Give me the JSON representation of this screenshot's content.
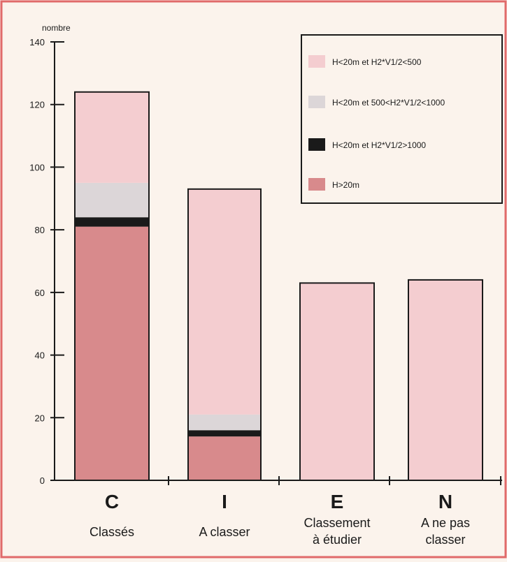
{
  "chart_data": {
    "type": "bar",
    "stacked": true,
    "ylabel": "nombre",
    "ylim": [
      0,
      140
    ],
    "yticks": [
      0,
      20,
      40,
      60,
      80,
      100,
      120,
      140
    ],
    "grid": false,
    "legend_position": "top-right",
    "categories": [
      {
        "code": "C",
        "label": [
          "Classés"
        ]
      },
      {
        "code": "I",
        "label": [
          "A classer"
        ]
      },
      {
        "code": "E",
        "label": [
          "Classement",
          "à étudier"
        ]
      },
      {
        "code": "N",
        "label": [
          "A ne pas",
          "classer"
        ]
      }
    ],
    "series": [
      {
        "name": "H>20m",
        "color": "#d88a8c",
        "values": [
          81,
          14,
          0,
          0
        ]
      },
      {
        "name": "H<20m et H2*V1/2>1000",
        "color": "#1a1a1a",
        "values": [
          3,
          2,
          0,
          0
        ]
      },
      {
        "name": "H<20m et 500<H2*V1/2<1000",
        "color": "#dcd6d8",
        "values": [
          11,
          5,
          0,
          0
        ]
      },
      {
        "name": "H<20m et H2*V1/2<500",
        "color": "#f4cdd0",
        "values": [
          29,
          72,
          63,
          64
        ]
      }
    ],
    "legend_order": [
      "H<20m et H2*V1/2<500",
      "H<20m et 500<H2*V1/2<1000",
      "H<20m et H2*V1/2>1000",
      "H>20m"
    ],
    "border_color": "#e06a6a",
    "bar_stroke": "#1a1a1a"
  }
}
